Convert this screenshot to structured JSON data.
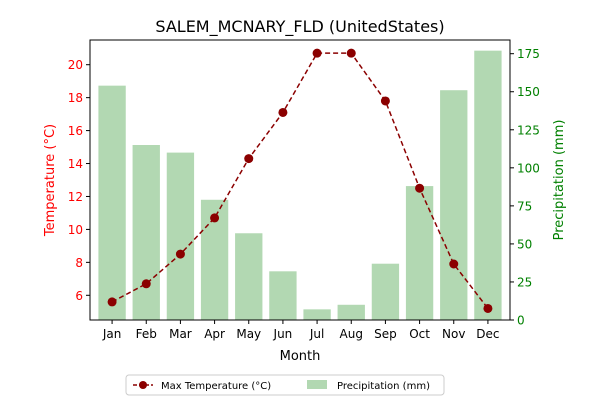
{
  "chart_data": {
    "type": "bar+line",
    "title": "SALEM_MCNARY_FLD (UnitedStates)",
    "xlabel": "Month",
    "categories": [
      "Jan",
      "Feb",
      "Mar",
      "Apr",
      "May",
      "Jun",
      "Jul",
      "Aug",
      "Sep",
      "Oct",
      "Nov",
      "Dec"
    ],
    "left_axis": {
      "label": "Temperature (°C)",
      "ylim": [
        4.5,
        21.5
      ],
      "ticks": [
        6,
        8,
        10,
        12,
        14,
        16,
        18,
        20
      ],
      "color": "#ff0000"
    },
    "right_axis": {
      "label": "Precipitation (mm)",
      "ylim": [
        0,
        184
      ],
      "ticks": [
        0,
        25,
        50,
        75,
        100,
        125,
        150,
        175
      ],
      "color": "#008000"
    },
    "series": [
      {
        "name": "Max Temperature (°C)",
        "kind": "line",
        "axis": "left",
        "color": "#8b0000",
        "values": [
          5.6,
          6.7,
          8.5,
          10.7,
          14.3,
          17.1,
          20.7,
          20.7,
          17.8,
          12.5,
          7.9,
          5.2
        ]
      },
      {
        "name": "Precipitation (mm)",
        "kind": "bar",
        "axis": "right",
        "color": "#b2d8b2",
        "values": [
          154,
          115,
          110,
          79,
          57,
          32,
          7,
          10,
          37,
          88,
          151,
          177
        ]
      }
    ],
    "legend_position": "bottom-center",
    "grid": false
  }
}
